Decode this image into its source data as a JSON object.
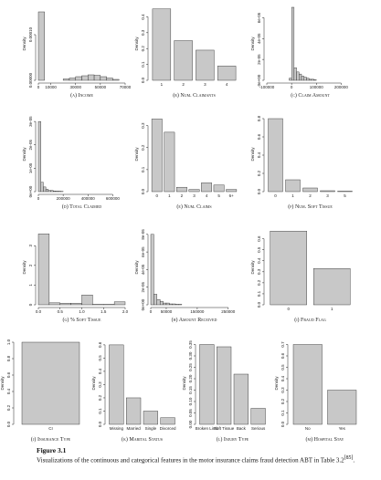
{
  "chart_data": [
    {
      "type": "histogram",
      "label": "(a)",
      "title": "Income",
      "ylabel": "Density",
      "bins": [
        0,
        5000,
        10000,
        15000,
        20000,
        25000,
        30000,
        35000,
        40000,
        45000,
        50000,
        55000,
        60000,
        65000,
        70000
      ],
      "values": [
        0.00015,
        0,
        0,
        0,
        3e-06,
        5e-06,
        8e-06,
        1e-05,
        1.2e-05,
        1.1e-05,
        8e-06,
        5e-06,
        2e-06,
        0
      ],
      "xlim": [
        0,
        70000
      ],
      "xticks": [
        0,
        10000,
        30000,
        50000,
        70000
      ],
      "ylim": [
        0,
        0.00016
      ],
      "yticks": [
        {
          "value": 0,
          "label": "0.00000"
        },
        {
          "value": 0.0001,
          "label": "0.00010"
        }
      ],
      "color": "#c8c8c8"
    },
    {
      "type": "bar",
      "label": "(b)",
      "title": "Num. Claimants",
      "ylabel": "Density",
      "categories": [
        "1",
        "2",
        "3",
        "4"
      ],
      "values": [
        0.45,
        0.25,
        0.19,
        0.09
      ],
      "ylim": [
        0,
        0.46
      ],
      "yticks": [
        {
          "value": 0,
          "label": "0.0"
        },
        0.1,
        0.2,
        0.3,
        0.4
      ],
      "color": "#c8c8c8"
    },
    {
      "type": "histogram",
      "label": "(c)",
      "title": "Claim Amount",
      "ylabel": "Density",
      "bins": [
        -10000,
        0,
        10000,
        20000,
        30000,
        40000,
        50000,
        60000,
        70000,
        80000,
        90000,
        100000
      ],
      "values": [
        2e-06,
        7e-05,
        1.2e-05,
        8e-06,
        6e-06,
        4e-06,
        3e-06,
        2e-06,
        1e-06,
        1e-06,
        5e-07
      ],
      "xlim": [
        -100000,
        250000
      ],
      "xticks": [
        -100000,
        0,
        100000,
        200000
      ],
      "ylim": [
        0,
        7e-05
      ],
      "yticks": [
        {
          "value": 0,
          "label": "0e+00"
        },
        {
          "value": 2e-05,
          "label": "2e-05"
        },
        {
          "value": 4e-05,
          "label": "4e-05"
        },
        {
          "value": 6e-05,
          "label": "6e-05"
        }
      ],
      "color": "#c8c8c8"
    },
    {
      "type": "histogram",
      "label": "(d)",
      "title": "Total Claimed",
      "ylabel": "Density",
      "bins": [
        0,
        20000,
        40000,
        60000,
        80000,
        100000,
        120000,
        140000,
        160000,
        180000,
        200000
      ],
      "values": [
        3e-05,
        4e-06,
        2e-06,
        1e-06,
        5e-07,
        5e-07,
        3e-07,
        2e-07,
        2e-07,
        1e-07
      ],
      "xlim": [
        0,
        700000
      ],
      "xticks": [
        0,
        200000,
        400000,
        600000
      ],
      "ylim": [
        0,
        3.2e-05
      ],
      "yticks": [
        {
          "value": 0,
          "label": "0e+00"
        },
        {
          "value": 1e-05,
          "label": "1e-05"
        },
        {
          "value": 2e-05,
          "label": "2e-05"
        },
        {
          "value": 3e-05,
          "label": "3e-05"
        }
      ],
      "color": "#c8c8c8"
    },
    {
      "type": "bar",
      "label": "(e)",
      "title": "Num. Claims",
      "ylabel": "Density",
      "categories": [
        "0",
        "1",
        "2",
        "3",
        "4",
        "5",
        "6+"
      ],
      "values": [
        0.33,
        0.27,
        0.02,
        0.01,
        0.04,
        0.03,
        0.01
      ],
      "ylim": [
        0,
        0.34
      ],
      "yticks": [
        {
          "value": 0,
          "label": "0.0"
        },
        0.1,
        0.2,
        0.3
      ],
      "color": "#c8c8c8"
    },
    {
      "type": "bar",
      "label": "(f)",
      "title": "Num. Soft Tissue",
      "ylabel": "Density",
      "categories": [
        "0",
        "1",
        "2",
        "3",
        "5"
      ],
      "values": [
        0.8,
        0.13,
        0.04,
        0.01,
        0.005
      ],
      "ylim": [
        0,
        0.82
      ],
      "yticks": [
        {
          "value": 0,
          "label": "0.0"
        },
        0.2,
        0.4,
        0.6,
        0.8
      ],
      "color": "#c8c8c8"
    },
    {
      "type": "histogram",
      "label": "(g)",
      "title": "% Soft Tissue",
      "ylabel": "Density",
      "bins": [
        0,
        0.25,
        0.5,
        0.75,
        1,
        1.25,
        1.5,
        1.75,
        2
      ],
      "values": [
        3.6,
        0.1,
        0.08,
        0.08,
        0.5,
        0.02,
        0.02,
        0.15
      ],
      "xlim": [
        0,
        2
      ],
      "xticks": [
        {
          "value": 0,
          "label": "0.0"
        },
        0.5,
        {
          "value": 1,
          "label": "1.0"
        },
        1.5,
        {
          "value": 2,
          "label": "2.0"
        }
      ],
      "ylim": [
        0,
        3.8
      ],
      "yticks": [
        0,
        1,
        2,
        3
      ],
      "color": "#c8c8c8"
    },
    {
      "type": "histogram",
      "label": "(h)",
      "title": "Amount Received",
      "ylabel": "Density",
      "bins": [
        0,
        10000,
        20000,
        30000,
        40000,
        50000,
        60000,
        70000,
        80000,
        90000,
        100000
      ],
      "values": [
        8e-05,
        1.2e-05,
        6e-06,
        4e-06,
        2e-06,
        2e-06,
        1e-06,
        1e-06,
        5e-07,
        5e-07
      ],
      "xlim": [
        0,
        280000
      ],
      "xticks": [
        0,
        50000,
        150000,
        250000
      ],
      "ylim": [
        0,
        8.5e-05
      ],
      "yticks": [
        {
          "value": 0,
          "label": "0e+00"
        },
        {
          "value": 2e-05,
          "label": "2e-05"
        },
        {
          "value": 4e-05,
          "label": "4e-05"
        },
        {
          "value": 6e-05,
          "label": "6e-05"
        },
        {
          "value": 8e-05,
          "label": "8e-05"
        }
      ],
      "color": "#c8c8c8"
    },
    {
      "type": "bar",
      "label": "(i)",
      "title": "Fraud Flag",
      "ylabel": "Density",
      "categories": [
        "0",
        "1"
      ],
      "values": [
        0.67,
        0.33
      ],
      "ylim": [
        0,
        0.68
      ],
      "yticks": [
        {
          "value": 0,
          "label": "0.0"
        },
        0.1,
        0.2,
        0.3,
        0.4,
        0.5,
        0.6
      ],
      "color": "#c8c8c8"
    },
    {
      "type": "bar",
      "label": "(j)",
      "title": "Insurance Type",
      "ylabel": "Density",
      "categories": [
        "CI"
      ],
      "values": [
        1
      ],
      "ylim": [
        0,
        1
      ],
      "yticks": [
        {
          "value": 0,
          "label": "0.0"
        },
        0.2,
        0.4,
        0.6,
        0.8,
        {
          "value": 1,
          "label": "1.0"
        }
      ],
      "color": "#c8c8c8"
    },
    {
      "type": "bar",
      "label": "(k)",
      "title": "Marital Status",
      "ylabel": "Density",
      "categories": [
        "Missing",
        "Married",
        "Single",
        "Divorced"
      ],
      "values": [
        0.6,
        0.2,
        0.1,
        0.05
      ],
      "ylim": [
        0,
        0.62
      ],
      "yticks": [
        {
          "value": 0,
          "label": "0.0"
        },
        0.1,
        0.2,
        0.3,
        0.4,
        0.5,
        0.6
      ],
      "color": "#c8c8c8"
    },
    {
      "type": "bar",
      "label": "(l)",
      "title": "Injury Type",
      "ylabel": "Density",
      "categories": [
        "Broken Limb",
        "Soft Tissue",
        "Back",
        "Serious"
      ],
      "values": [
        0.35,
        0.34,
        0.22,
        0.07
      ],
      "ylim": [
        0,
        0.36
      ],
      "yticks": [
        {
          "value": 0,
          "label": "0.00"
        },
        0.05,
        {
          "value": 0.1,
          "label": "0.10"
        },
        0.15,
        {
          "value": 0.2,
          "label": "0.20"
        },
        0.25,
        {
          "value": 0.3,
          "label": "0.30"
        },
        0.35
      ],
      "color": "#c8c8c8"
    },
    {
      "type": "bar",
      "label": "(m)",
      "title": "Hospital Stay",
      "ylabel": "Density",
      "categories": [
        "No",
        "Yes"
      ],
      "values": [
        0.7,
        0.3
      ],
      "ylim": [
        0,
        0.72
      ],
      "yticks": [
        {
          "value": 0,
          "label": "0.0"
        },
        0.1,
        0.2,
        0.3,
        0.4,
        0.5,
        0.6,
        0.7
      ],
      "color": "#c8c8c8"
    }
  ],
  "figure": {
    "label": "Figure 3.1",
    "caption": "Visualizations of the continuous and categorical features in the motor insurance claims fraud detection ABT in Table 3.2",
    "ref": "[85]"
  }
}
